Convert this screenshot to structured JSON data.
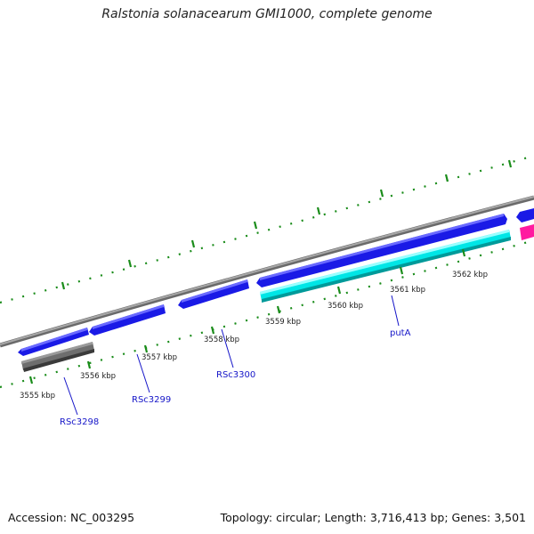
{
  "title": "Ralstonia solanacearum GMI1000, complete genome",
  "footer": {
    "accession": "Accession: NC_003295",
    "summary": "Topology: circular; Length: 3,716,413 bp; Genes: 3,501"
  },
  "colors": {
    "backbone": "#8c8c8c",
    "cds_forward": "#1a1ae6",
    "cds_reverse_misc": "#707070",
    "cds_highlight": "#00e6e6",
    "cds_pink": "#ff1aa0",
    "tick": "#1a8c1a",
    "gene_label": "#1515c8"
  },
  "scale": {
    "ticks": [
      {
        "label": "3555 kbp"
      },
      {
        "label": "3556 kbp"
      },
      {
        "label": "3557 kbp"
      },
      {
        "label": "3558 kbp"
      },
      {
        "label": "3559 kbp"
      },
      {
        "label": "3560 kbp"
      },
      {
        "label": "3561 kbp"
      },
      {
        "label": "3562 kbp"
      }
    ]
  },
  "genes": [
    {
      "name": "RSc3298"
    },
    {
      "name": "RSc3299"
    },
    {
      "name": "RSc3300"
    },
    {
      "name": "putA"
    }
  ]
}
